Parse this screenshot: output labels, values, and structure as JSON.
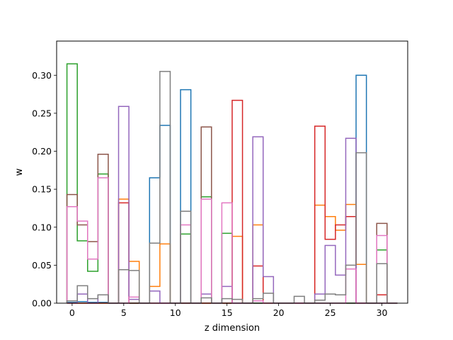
{
  "chart_data": {
    "type": "line",
    "subtype": "step-histogram",
    "title": "",
    "xlabel": "z dimension",
    "ylabel": "w",
    "xlim": [
      -1.5,
      32.5
    ],
    "ylim": [
      0,
      0.345
    ],
    "xticks": [
      0,
      5,
      10,
      15,
      20,
      25,
      30
    ],
    "yticks": [
      0.0,
      0.05,
      0.1,
      0.15,
      0.2,
      0.25,
      0.3
    ],
    "xtick_labels": [
      "0",
      "5",
      "10",
      "15",
      "20",
      "25",
      "30"
    ],
    "ytick_labels": [
      "0.00",
      "0.05",
      "0.10",
      "0.15",
      "0.20",
      "0.25",
      "0.30"
    ],
    "grid": false,
    "legend": "none",
    "x": [
      0,
      1,
      2,
      3,
      4,
      5,
      6,
      7,
      8,
      9,
      10,
      11,
      12,
      13,
      14,
      15,
      16,
      17,
      18,
      19,
      20,
      21,
      22,
      23,
      24,
      25,
      26,
      27,
      28,
      29,
      30,
      31
    ],
    "series": [
      {
        "color": "#1f77b4",
        "values": [
          0.001,
          0.002,
          0.001,
          0.001,
          0,
          0,
          0,
          0,
          0.165,
          0.234,
          0,
          0.281,
          0,
          0,
          0,
          0,
          0,
          0,
          0,
          0,
          0,
          0,
          0,
          0,
          0,
          0,
          0,
          0,
          0.3,
          0,
          0,
          0
        ]
      },
      {
        "color": "#ff7f0e",
        "values": [
          0,
          0,
          0,
          0,
          0,
          0.137,
          0.055,
          0,
          0.022,
          0.078,
          0,
          0,
          0,
          0,
          0,
          0,
          0.088,
          0,
          0.103,
          0,
          0,
          0,
          0,
          0,
          0.129,
          0.114,
          0.096,
          0.13,
          0.051,
          0,
          0,
          0
        ]
      },
      {
        "color": "#2ca02c",
        "values": [
          0.315,
          0.082,
          0.042,
          0.17,
          0,
          0,
          0,
          0,
          0,
          0,
          0,
          0.091,
          0,
          0.14,
          0,
          0.092,
          0,
          0,
          0,
          0,
          0,
          0,
          0,
          0,
          0,
          0,
          0,
          0,
          0,
          0,
          0.07,
          0
        ]
      },
      {
        "color": "#d62728",
        "values": [
          0,
          0,
          0,
          0,
          0,
          0.132,
          0,
          0,
          0,
          0,
          0,
          0,
          0,
          0,
          0,
          0,
          0.267,
          0,
          0.049,
          0,
          0,
          0,
          0,
          0,
          0.233,
          0.084,
          0.103,
          0.114,
          0,
          0,
          0.011,
          0
        ]
      },
      {
        "color": "#9467bd",
        "values": [
          0,
          0.012,
          0,
          0.011,
          0,
          0.259,
          0.005,
          0,
          0.016,
          0,
          0,
          0,
          0,
          0.012,
          0,
          0.022,
          0,
          0,
          0.219,
          0.035,
          0,
          0,
          0,
          0,
          0.012,
          0.076,
          0.037,
          0.217,
          0,
          0,
          0,
          0
        ]
      },
      {
        "color": "#8c564b",
        "values": [
          0.143,
          0.103,
          0.081,
          0.196,
          0,
          0,
          0,
          0,
          0,
          0,
          0,
          0,
          0,
          0.232,
          0,
          0,
          0,
          0,
          0,
          0,
          0,
          0,
          0,
          0,
          0,
          0,
          0,
          0,
          0,
          0,
          0.105,
          0
        ]
      },
      {
        "color": "#e377c2",
        "values": [
          0.127,
          0.108,
          0.058,
          0.165,
          0,
          0,
          0.008,
          0,
          0,
          0,
          0,
          0.103,
          0,
          0.137,
          0,
          0.132,
          0,
          0,
          0.003,
          0,
          0,
          0,
          0,
          0,
          0,
          0,
          0,
          0.045,
          0,
          0,
          0.089,
          0
        ]
      },
      {
        "color": "#7f7f7f",
        "values": [
          0.003,
          0.023,
          0.006,
          0.011,
          0,
          0.044,
          0.043,
          0,
          0.079,
          0.305,
          0,
          0.121,
          0,
          0.007,
          0,
          0.006,
          0.005,
          0,
          0.006,
          0.013,
          0,
          0,
          0.009,
          0,
          0.004,
          0.012,
          0.011,
          0.05,
          0.198,
          0,
          0.052,
          0
        ]
      }
    ]
  }
}
